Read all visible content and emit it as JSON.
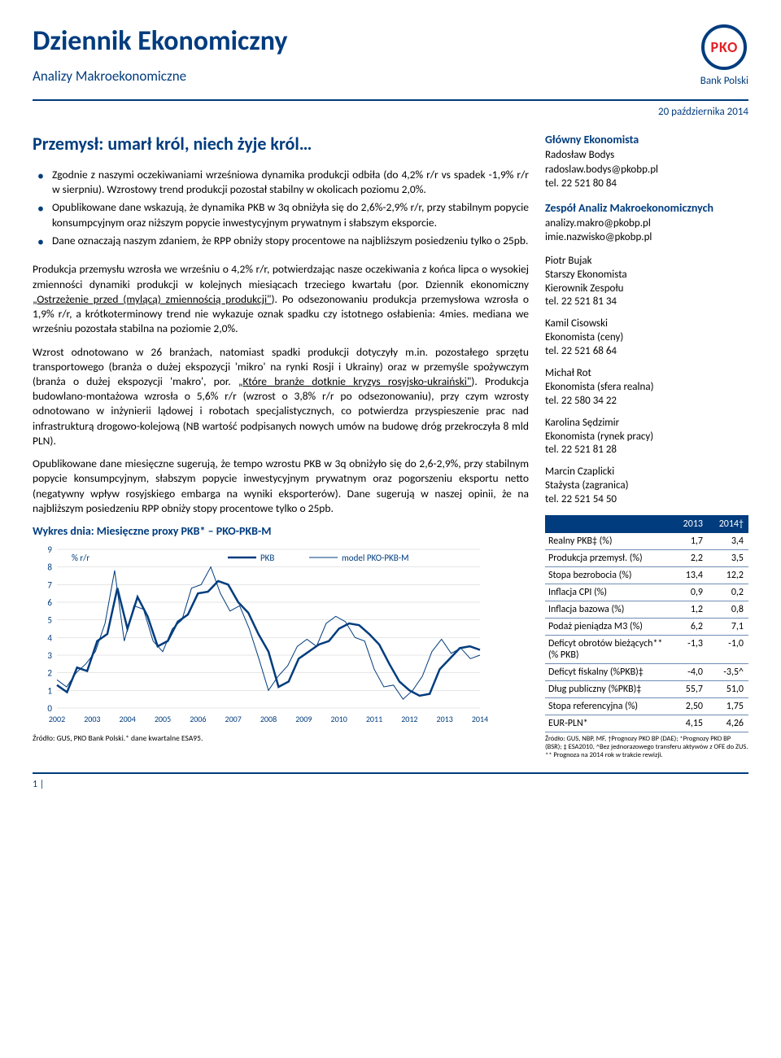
{
  "header": {
    "title": "Dziennik Ekonomiczny",
    "subtitle": "Analizy Makroekonomiczne",
    "logo_text": "PKO",
    "bank_name": "Bank Polski",
    "date": "20 października 2014"
  },
  "article": {
    "title": "Przemysł: umarł król, niech żyje król…",
    "bullets": [
      "Zgodnie z naszymi oczekiwaniami wrześniowa dynamika produkcji odbiła (do 4,2% r/r vs spadek -1,9% r/r w sierpniu). Wzrostowy trend produkcji pozostał stabilny w okolicach poziomu 2,0%.",
      "Opublikowane dane wskazują, że dynamika PKB w 3q obniżyła się do 2,6%-2,9% r/r, przy stabilnym popycie konsumpcyjnym oraz niższym popycie inwestycyjnym prywatnym i słabszym eksporcie.",
      "Dane oznaczają naszym zdaniem, że RPP obniży stopy procentowe na najbliższym posiedzeniu tylko o 25pb."
    ],
    "para1_a": "Produkcja przemysłu wzrosła we wrześniu o 4,2% r/r, potwierdzając nasze oczekiwania z końca lipca o wysokiej zmienności dynamiki produkcji w kolejnych miesiącach trzeciego kwartału (por. Dziennik ekonomiczny ",
    "para1_link": "„Ostrzeżenie przed (mylącą) zmiennością produkcji\"",
    "para1_b": "). Po odsezonowaniu produkcja przemysłowa wzrosła o 1,9% r/r, a krótkoterminowy trend nie wykazuje oznak spadku czy istotnego osłabienia: 4mies. mediana we wrześniu pozostała stabilna na poziomie 2,0%.",
    "para2_a": "Wzrost odnotowano w 26 branżach, natomiast spadki produkcji dotyczyły m.in. pozostałego sprzętu transportowego (branża o dużej ekspozycji 'mikro' na rynki Rosji i Ukrainy) oraz w przemyśle spożywczym (branża o dużej ekspozycji 'makro', por. ",
    "para2_link": "„Które branże dotknie kryzys rosyjsko-ukraiński\"",
    "para2_b": "). Produkcja budowlano-montażowa wzrosła o 5,6% r/r (wzrost o 3,8% r/r po odsezonowaniu), przy czym wzrosty odnotowano w inżynierii lądowej i robotach specjalistycznych, co potwierdza przyspieszenie prac nad infrastrukturą drogowo-kolejową (NB wartość podpisanych nowych umów na budowę dróg przekroczyła 8 mld PLN).",
    "para3": "Opublikowane dane miesięczne sugerują, że tempo wzrostu PKB w 3q obniżyło się do 2,6-2,9%, przy stabilnym popycie konsumpcyjnym, słabszym popycie inwestycyjnym prywatnym oraz pogorszeniu eksportu netto (negatywny wpływ rosyjskiego embarga na wyniki eksporterów). Dane sugerują w naszej opinii, że na najbliższym posiedzeniu RPP obniży stopy procentowe tylko o 25pb."
  },
  "chart": {
    "title": "Wykres dnia: Miesięczne proxy PKB* – PKO-PKB-M",
    "ylabel": "% r/r",
    "legend_pkb": "PKB",
    "legend_model": "model PKO-PKB-M",
    "ylim": [
      0,
      9
    ],
    "ytick_step": 1,
    "xlabels": [
      "2002",
      "2003",
      "2004",
      "2005",
      "2006",
      "2007",
      "2008",
      "2009",
      "2010",
      "2011",
      "2012",
      "2013",
      "2014"
    ],
    "series_pkb": {
      "color": "#003c7e",
      "width": 2.5,
      "values": [
        1.3,
        0.9,
        2.3,
        2.1,
        3.8,
        4.2,
        6.8,
        4.5,
        6.3,
        5.2,
        3.5,
        3.8,
        4.9,
        5.3,
        6.5,
        6.6,
        7.2,
        7.0,
        6.0,
        5.4,
        4.2,
        3.2,
        1.2,
        1.5,
        2.8,
        3.2,
        3.6,
        3.8,
        4.5,
        4.8,
        4.7,
        4.2,
        3.6,
        2.5,
        1.5,
        1.0,
        0.7,
        0.8,
        2.2,
        2.8,
        3.4,
        3.5,
        3.3
      ]
    },
    "series_model": {
      "color": "#003c7e",
      "width": 1,
      "values": [
        1.6,
        1.2,
        2.0,
        2.5,
        3.2,
        4.8,
        7.8,
        3.8,
        5.8,
        5.6,
        3.8,
        3.2,
        4.5,
        5.0,
        6.8,
        7.0,
        8.0,
        6.5,
        5.5,
        5.8,
        4.5,
        2.8,
        1.0,
        1.8,
        2.4,
        3.5,
        3.9,
        3.5,
        4.8,
        5.2,
        4.9,
        4.0,
        3.8,
        2.2,
        1.2,
        1.3,
        0.5,
        1.0,
        1.8,
        3.2,
        3.9,
        3.1,
        3.4,
        2.8,
        3.0
      ]
    },
    "source": "Źródło: GUS, PKO Bank Polski.* dane kwartalne ESA95.",
    "bg": "#ffffff",
    "grid_color": "#cccccc",
    "axis_color": "#666666",
    "text_color": "#003c7e"
  },
  "sidebar": {
    "chief_title": "Główny Ekonomista",
    "chief": "Radosław Bodys\nradoslaw.bodys@pkobp.pl\ntel. 22 521 80 84",
    "team_title": "Zespół Analiz Makroekonomicznych",
    "team_emails": "analizy.makro@pkobp.pl\nimie.nazwisko@pkobp.pl",
    "members": [
      "Piotr Bujak\nStarszy Ekonomista\nKierownik Zespołu\ntel. 22 521 81 34",
      "Kamil Cisowski\nEkonomista (ceny)\ntel. 22 521 68 64",
      "Michał Rot\nEkonomista (sfera realna)\ntel. 22 580 34 22",
      "Karolina Sędzimir\nEkonomista (rynek pracy)\ntel. 22 521 81 28",
      "Marcin Czaplicki\nStażysta (zagranica)\ntel. 22 521 54 50"
    ]
  },
  "table": {
    "h2013": "2013",
    "h2014": "2014†",
    "rows": [
      {
        "label": "Realny PKB‡ (%)",
        "a": "1,7",
        "b": "3,4"
      },
      {
        "label": "Produkcja przemysł. (%)",
        "a": "2,2",
        "b": "3,5"
      },
      {
        "label": "Stopa bezrobocia (%)",
        "a": "13,4",
        "b": "12,2"
      },
      {
        "label": "Inflacja CPI (%)",
        "a": "0,9",
        "b": "0,2"
      },
      {
        "label": "Inflacja bazowa (%)",
        "a": "1,2",
        "b": "0,8"
      },
      {
        "label": "Podaż pieniądza M3 (%)",
        "a": "6,2",
        "b": "7,1"
      },
      {
        "label": "Deficyt obrotów bieżących** (% PKB)",
        "a": "-1,3",
        "b": "-1,0"
      },
      {
        "label": "Deficyt fiskalny (%PKB)‡",
        "a": "-4,0",
        "b": "-3,5^"
      },
      {
        "label": "Dług publiczny (%PKB)‡",
        "a": "55,7",
        "b": "51,0"
      },
      {
        "label": "Stopa referencyjna (%)",
        "a": "2,50",
        "b": "1,75"
      },
      {
        "label": "EUR-PLN*",
        "a": "4,15",
        "b": "4,26"
      }
    ],
    "footnote": "Źródło: GUS, NBP, MF, †Prognozy PKO BP (DAE); *Prognozy PKO BP (BSR); ‡ ESA2010, ^Bez jednorazowego transferu aktywów z OFE do ZUS. ** Prognoza na 2014 rok w trakcie rewizji."
  },
  "footer": {
    "page": "1 |"
  }
}
